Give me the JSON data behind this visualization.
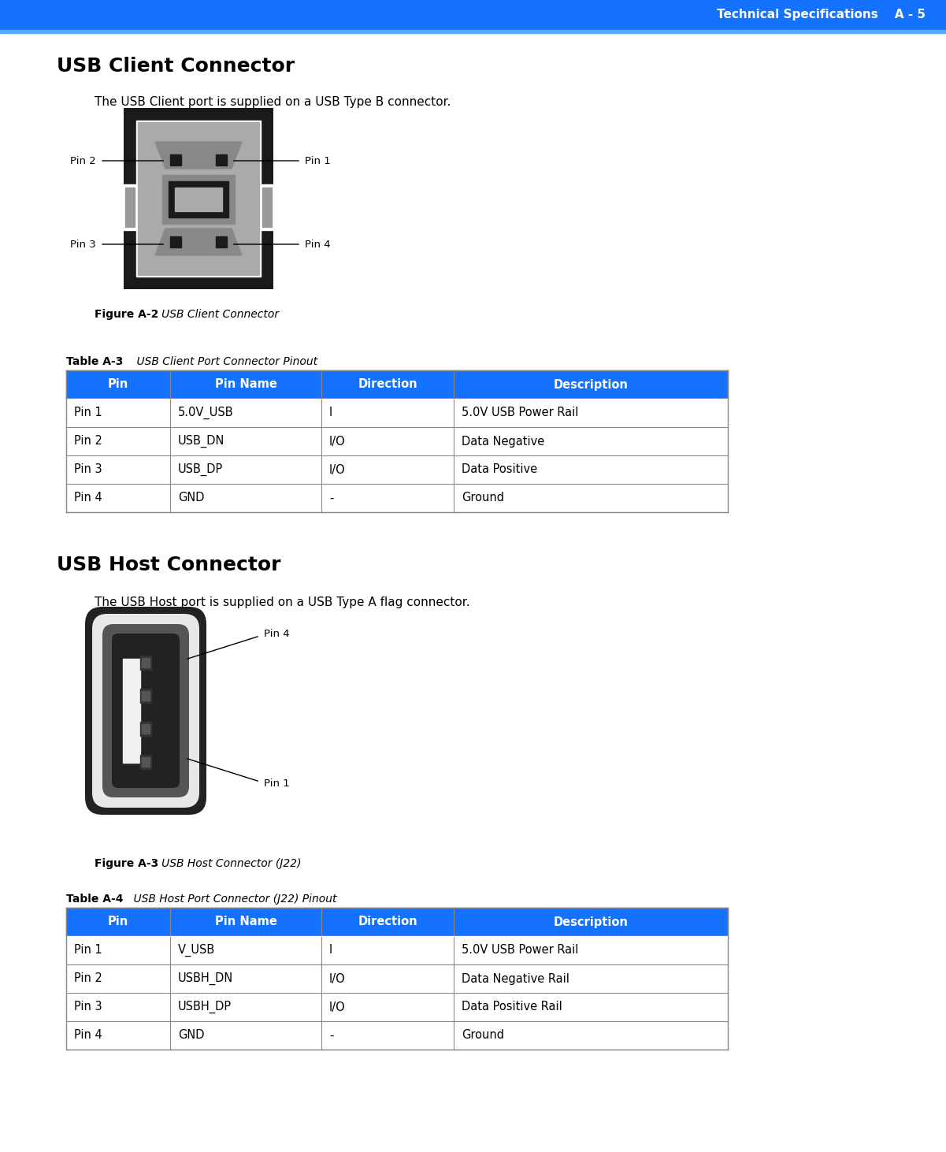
{
  "header_bg": "#1472ff",
  "header_text": "Technical Specifications    A - 5",
  "header_text_color": "#ffffff",
  "page_bg": "#ffffff",
  "section1_title": "USB Client Connector",
  "section1_body": "The USB Client port is supplied on a USB Type B connector.",
  "fig2_caption_bold": "Figure A-2",
  "fig2_caption_italic": "   USB Client Connector",
  "table3_label_bold": "Table A-3",
  "table3_label_italic": "    USB Client Port Connector Pinout",
  "table3_headers": [
    "Pin",
    "Pin Name",
    "Direction",
    "Description"
  ],
  "table3_rows": [
    [
      "Pin 1",
      "5.0V_USB",
      "I",
      "5.0V USB Power Rail"
    ],
    [
      "Pin 2",
      "USB_DN",
      "I/O",
      "Data Negative"
    ],
    [
      "Pin 3",
      "USB_DP",
      "I/O",
      "Data Positive"
    ],
    [
      "Pin 4",
      "GND",
      "-",
      "Ground"
    ]
  ],
  "section2_title": "USB Host Connector",
  "section2_body": "The USB Host port is supplied on a USB Type A flag connector.",
  "fig3_caption_bold": "Figure A-3",
  "fig3_caption_italic": "   USB Host Connector (J22)",
  "table4_label_bold": "Table A-4",
  "table4_label_italic": "    USB Host Port Connector (J22) Pinout",
  "table4_headers": [
    "Pin",
    "Pin Name",
    "Direction",
    "Description"
  ],
  "table4_rows": [
    [
      "Pin 1",
      "V_USB",
      "I",
      "5.0V USB Power Rail"
    ],
    [
      "Pin 2",
      "USBH_DN",
      "I/O",
      "Data Negative Rail"
    ],
    [
      "Pin 3",
      "USBH_DP",
      "I/O",
      "Data Positive Rail"
    ],
    [
      "Pin 4",
      "GND",
      "-",
      "Ground"
    ]
  ],
  "table_header_bg": "#1472ff",
  "table_header_text": "#ffffff",
  "table_border_color": "#888888"
}
